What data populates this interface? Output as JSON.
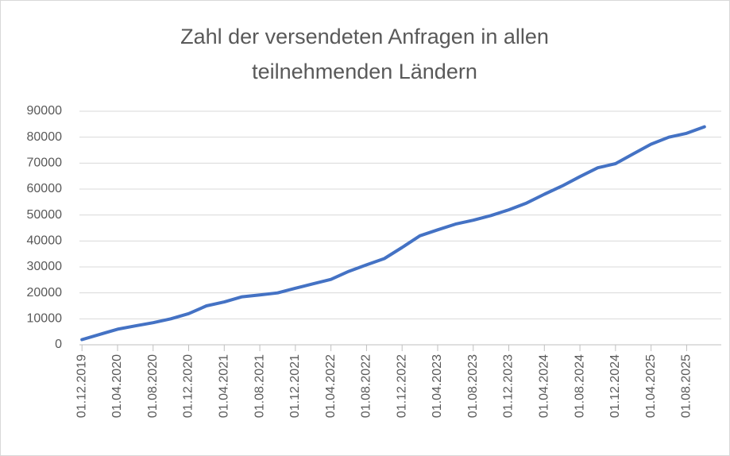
{
  "chart_data": {
    "type": "line",
    "title": "Zahl der versendeten Anfragen in allen teilnehmenden Ländern",
    "categories": [
      "01.12.2019",
      null,
      "01.04.2020",
      null,
      "01.08.2020",
      null,
      "01.12.2020",
      null,
      "01.04.2021",
      null,
      "01.08.2021",
      null,
      "01.12.2021",
      null,
      "01.04.2022",
      null,
      "01.08.2022",
      null,
      "01.12.2022",
      null,
      "01.04.2023",
      null,
      "01.08.2023",
      null,
      "01.12.2023",
      null,
      "01.04.2024",
      null,
      "01.08.2024",
      null,
      "01.12.2024",
      null,
      "01.04.2025",
      null,
      "01.08.2025",
      null
    ],
    "series": [
      {
        "color": "#4472c4",
        "values": [
          2000,
          4000,
          6000,
          7300,
          8500,
          10000,
          12000,
          15000,
          16500,
          18500,
          19200,
          20000,
          21800,
          23500,
          25200,
          28300,
          30800,
          33200,
          37500,
          42000,
          44300,
          46500,
          48000,
          49800,
          52000,
          54600,
          58000,
          61200,
          64800,
          68200,
          69800,
          73600,
          77300,
          80000,
          81500,
          84000
        ]
      }
    ],
    "ylim": [
      0,
      90000
    ],
    "yticks": [
      0,
      10000,
      20000,
      30000,
      40000,
      50000,
      60000,
      70000,
      80000,
      90000
    ],
    "grid": true
  }
}
